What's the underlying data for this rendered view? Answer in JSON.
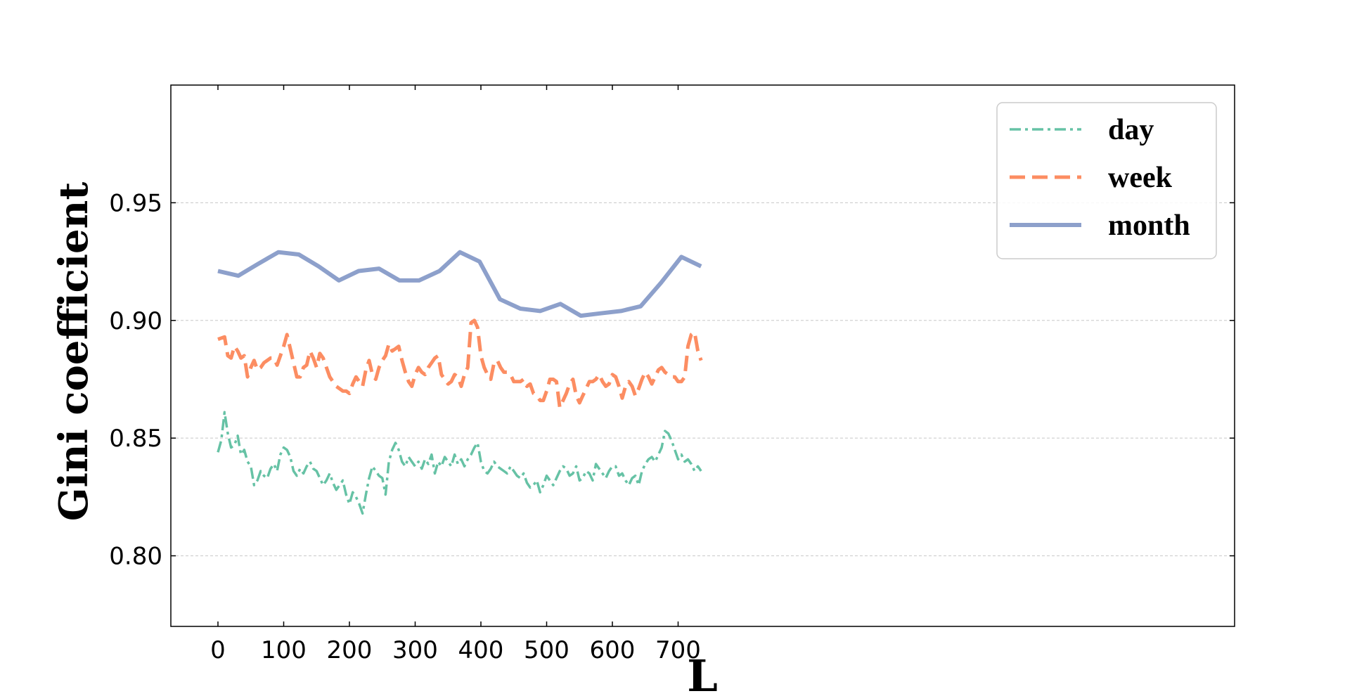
{
  "chart_data": {
    "type": "line",
    "title": "",
    "xlabel": "L",
    "ylabel": "Gini coefficient",
    "xlim": [
      -35,
      775
    ],
    "ylim": [
      0.77,
      1.0
    ],
    "xticks": [
      0,
      100,
      200,
      300,
      400,
      500,
      600,
      700
    ],
    "yticks": [
      0.8,
      0.85,
      0.9,
      0.95
    ],
    "xtick_labels": [
      "0",
      "100",
      "200",
      "300",
      "400",
      "500",
      "600",
      "700"
    ],
    "ytick_labels": [
      "0.80",
      "0.85",
      "0.90",
      "0.95"
    ],
    "grid": "y-dashed",
    "legend_position": "top-right",
    "series": [
      {
        "name": "day",
        "color": "#66c2a5",
        "style": "dashdot",
        "x": [
          0,
          5,
          10,
          15,
          20,
          25,
          30,
          35,
          40,
          45,
          50,
          55,
          60,
          65,
          70,
          75,
          80,
          85,
          90,
          95,
          100,
          105,
          110,
          115,
          120,
          125,
          130,
          135,
          140,
          145,
          150,
          155,
          160,
          165,
          170,
          175,
          180,
          185,
          190,
          195,
          200,
          205,
          210,
          215,
          220,
          225,
          230,
          235,
          240,
          245,
          250,
          255,
          260,
          265,
          270,
          275,
          280,
          285,
          290,
          295,
          300,
          305,
          310,
          315,
          320,
          325,
          330,
          335,
          340,
          345,
          350,
          355,
          360,
          365,
          370,
          375,
          380,
          385,
          390,
          395,
          400,
          405,
          410,
          415,
          420,
          425,
          430,
          435,
          440,
          445,
          450,
          455,
          460,
          465,
          470,
          475,
          480,
          485,
          490,
          495,
          500,
          505,
          510,
          515,
          520,
          525,
          530,
          535,
          540,
          545,
          550,
          555,
          560,
          565,
          570,
          575,
          580,
          585,
          590,
          595,
          600,
          605,
          610,
          615,
          620,
          625,
          630,
          635,
          640,
          645,
          650,
          655,
          660,
          665,
          670,
          675,
          680,
          685,
          690,
          695,
          700,
          705,
          710,
          715,
          720,
          725,
          730,
          735
        ],
        "y": [
          0.844,
          0.849,
          0.861,
          0.852,
          0.846,
          0.847,
          0.851,
          0.843,
          0.845,
          0.84,
          0.838,
          0.83,
          0.832,
          0.836,
          0.834,
          0.833,
          0.837,
          0.839,
          0.836,
          0.843,
          0.846,
          0.845,
          0.842,
          0.836,
          0.834,
          0.837,
          0.835,
          0.838,
          0.84,
          0.837,
          0.836,
          0.833,
          0.83,
          0.832,
          0.835,
          0.831,
          0.828,
          0.83,
          0.832,
          0.826,
          0.822,
          0.827,
          0.825,
          0.822,
          0.818,
          0.826,
          0.833,
          0.838,
          0.836,
          0.834,
          0.833,
          0.826,
          0.84,
          0.845,
          0.848,
          0.845,
          0.84,
          0.838,
          0.842,
          0.84,
          0.838,
          0.84,
          0.837,
          0.841,
          0.839,
          0.843,
          0.835,
          0.84,
          0.838,
          0.842,
          0.84,
          0.838,
          0.843,
          0.839,
          0.841,
          0.838,
          0.841,
          0.843,
          0.846,
          0.848,
          0.84,
          0.836,
          0.835,
          0.837,
          0.84,
          0.838,
          0.837,
          0.836,
          0.835,
          0.838,
          0.836,
          0.834,
          0.833,
          0.835,
          0.831,
          0.829,
          0.83,
          0.832,
          0.827,
          0.83,
          0.834,
          0.832,
          0.83,
          0.833,
          0.836,
          0.838,
          0.837,
          0.834,
          0.835,
          0.838,
          0.832,
          0.833,
          0.836,
          0.835,
          0.832,
          0.839,
          0.837,
          0.835,
          0.833,
          0.836,
          0.838,
          0.838,
          0.834,
          0.835,
          0.832,
          0.83,
          0.833,
          0.834,
          0.83,
          0.836,
          0.839,
          0.841,
          0.842,
          0.84,
          0.843,
          0.846,
          0.853,
          0.852,
          0.849,
          0.845,
          0.841,
          0.843,
          0.84,
          0.841,
          0.839,
          0.836,
          0.838,
          0.836
        ]
      },
      {
        "name": "week",
        "color": "#fc8d62",
        "style": "dashed",
        "x": [
          0,
          10,
          15,
          20,
          25,
          30,
          35,
          40,
          45,
          50,
          55,
          60,
          65,
          70,
          75,
          80,
          85,
          90,
          95,
          100,
          105,
          110,
          115,
          120,
          125,
          130,
          135,
          140,
          145,
          150,
          155,
          160,
          165,
          170,
          175,
          180,
          185,
          190,
          195,
          200,
          205,
          210,
          215,
          220,
          225,
          230,
          235,
          240,
          245,
          250,
          255,
          260,
          265,
          270,
          275,
          280,
          285,
          290,
          295,
          300,
          305,
          310,
          315,
          320,
          325,
          330,
          335,
          340,
          345,
          350,
          355,
          360,
          365,
          370,
          375,
          380,
          385,
          390,
          395,
          400,
          405,
          410,
          415,
          420,
          425,
          430,
          435,
          440,
          445,
          450,
          455,
          460,
          465,
          470,
          475,
          480,
          485,
          490,
          495,
          500,
          505,
          510,
          515,
          520,
          525,
          530,
          535,
          540,
          545,
          550,
          555,
          560,
          565,
          570,
          575,
          580,
          585,
          590,
          595,
          600,
          605,
          610,
          615,
          620,
          625,
          630,
          635,
          640,
          645,
          650,
          655,
          660,
          665,
          670,
          675,
          680,
          685,
          690,
          695,
          700,
          705,
          710,
          715,
          720,
          725,
          730,
          735
        ],
        "y": [
          0.892,
          0.893,
          0.885,
          0.884,
          0.889,
          0.887,
          0.884,
          0.885,
          0.876,
          0.88,
          0.883,
          0.879,
          0.88,
          0.882,
          0.883,
          0.884,
          0.884,
          0.881,
          0.885,
          0.889,
          0.894,
          0.888,
          0.882,
          0.876,
          0.876,
          0.88,
          0.881,
          0.887,
          0.884,
          0.88,
          0.886,
          0.884,
          0.88,
          0.876,
          0.874,
          0.872,
          0.871,
          0.87,
          0.87,
          0.869,
          0.873,
          0.876,
          0.874,
          0.872,
          0.879,
          0.883,
          0.877,
          0.875,
          0.88,
          0.883,
          0.885,
          0.89,
          0.887,
          0.888,
          0.889,
          0.883,
          0.878,
          0.874,
          0.872,
          0.877,
          0.88,
          0.878,
          0.877,
          0.88,
          0.882,
          0.884,
          0.885,
          0.877,
          0.875,
          0.873,
          0.874,
          0.877,
          0.876,
          0.872,
          0.877,
          0.88,
          0.899,
          0.9,
          0.897,
          0.885,
          0.88,
          0.877,
          0.875,
          0.882,
          0.883,
          0.88,
          0.878,
          0.878,
          0.877,
          0.874,
          0.874,
          0.874,
          0.875,
          0.872,
          0.873,
          0.869,
          0.868,
          0.866,
          0.866,
          0.87,
          0.875,
          0.875,
          0.874,
          0.863,
          0.866,
          0.869,
          0.873,
          0.875,
          0.868,
          0.865,
          0.868,
          0.871,
          0.874,
          0.874,
          0.875,
          0.877,
          0.874,
          0.872,
          0.873,
          0.877,
          0.876,
          0.872,
          0.867,
          0.872,
          0.874,
          0.872,
          0.868,
          0.871,
          0.875,
          0.878,
          0.876,
          0.873,
          0.876,
          0.879,
          0.88,
          0.878,
          0.877,
          0.876,
          0.876,
          0.874,
          0.874,
          0.876,
          0.889,
          0.894,
          0.895,
          0.887,
          0.883
        ]
      },
      {
        "name": "month",
        "color": "#8da0cb",
        "style": "solid",
        "x": [
          0,
          31,
          61,
          92,
          123,
          153,
          184,
          214,
          245,
          276,
          306,
          337,
          368,
          398,
          429,
          460,
          490,
          521,
          552,
          582,
          613,
          643,
          674,
          705,
          735
        ],
        "y": [
          0.921,
          0.919,
          0.924,
          0.929,
          0.928,
          0.923,
          0.917,
          0.921,
          0.922,
          0.917,
          0.917,
          0.921,
          0.929,
          0.925,
          0.909,
          0.905,
          0.904,
          0.907,
          0.902,
          0.903,
          0.904,
          0.906,
          0.916,
          0.927,
          0.923
        ]
      }
    ]
  }
}
